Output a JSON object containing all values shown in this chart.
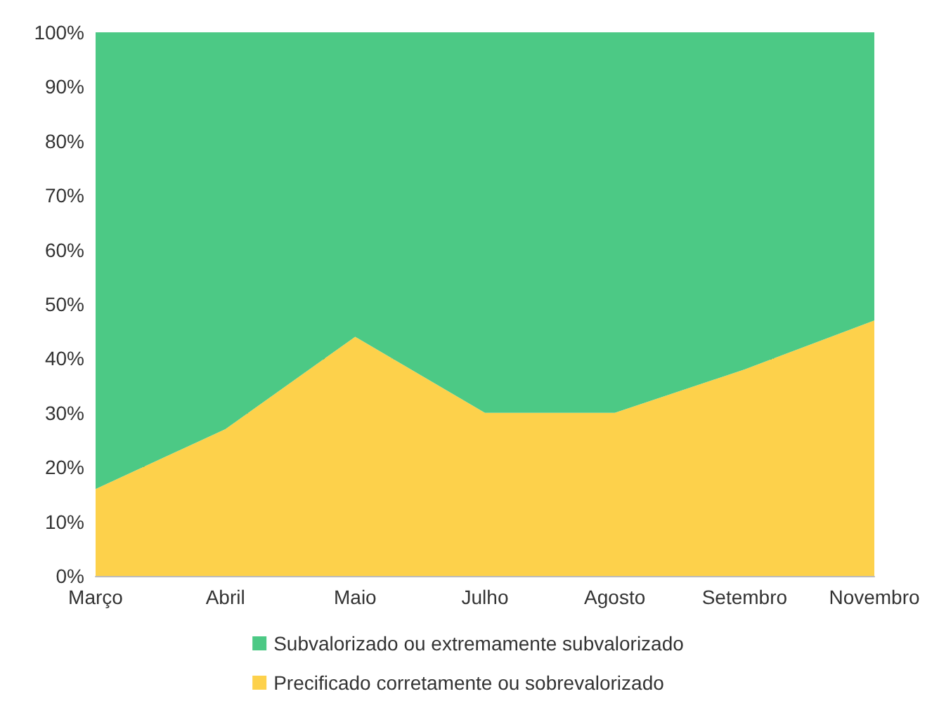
{
  "chart_data": {
    "type": "area",
    "stacked": true,
    "categories": [
      "Março",
      "Abril",
      "Maio",
      "Julho",
      "Agosto",
      "Setembro",
      "Novembro"
    ],
    "series": [
      {
        "name": "Precificado corretamente ou sobrevalorizado",
        "color": "#fdd14b",
        "values": [
          16,
          27,
          44,
          30,
          30,
          38,
          47
        ]
      },
      {
        "name": "Subvalorizado ou extremamente subvalorizado",
        "color": "#4cc985",
        "values": [
          84,
          73,
          56,
          70,
          70,
          62,
          53
        ]
      }
    ],
    "ylim": [
      0,
      100
    ],
    "yticks": [
      {
        "value": 0,
        "label": "0%"
      },
      {
        "value": 10,
        "label": "10%"
      },
      {
        "value": 20,
        "label": "20%"
      },
      {
        "value": 30,
        "label": "30%"
      },
      {
        "value": 40,
        "label": "40%"
      },
      {
        "value": 50,
        "label": "50%"
      },
      {
        "value": 60,
        "label": "60%"
      },
      {
        "value": 70,
        "label": "70%"
      },
      {
        "value": 80,
        "label": "80%"
      },
      {
        "value": 90,
        "label": "90%"
      },
      {
        "value": 100,
        "label": "100%"
      }
    ],
    "grid": "y",
    "legend": "bottom",
    "marker": "none"
  }
}
